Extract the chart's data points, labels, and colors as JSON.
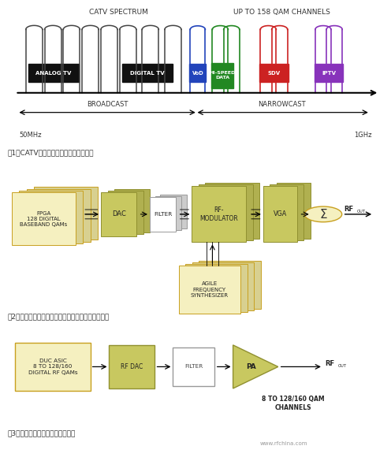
{
  "fig1": {
    "caption": "图1，CATV频谱包括了广播和窄播业务。",
    "header1": "CATV SPECTRUM",
    "header2": "UP TO 158 QAM CHANNELS",
    "broadcast_label": "BROADCAST",
    "narrowcast_label": "NARROWCAST",
    "freq_start": "50MHz",
    "freq_end": "1GHz"
  },
  "fig2": {
    "caption": "图2，前期模拟上变频转换需要多个模拟发送器实现。"
  },
  "fig3": {
    "caption": "图3，直接变频发送器为单信号链。"
  },
  "colors": {
    "yellow_face": "#f5f0c0",
    "yellow_edge": "#c8a020",
    "green_face": "#c8c860",
    "green_edge": "#909030",
    "white_face": "#ffffff",
    "white_edge": "#999999",
    "black_label": "#111111",
    "vod_color": "#2244bb",
    "hispeed_color": "#228822",
    "sdv_color": "#cc2222",
    "iptv_color": "#8833bb",
    "text_dark": "#333333"
  }
}
